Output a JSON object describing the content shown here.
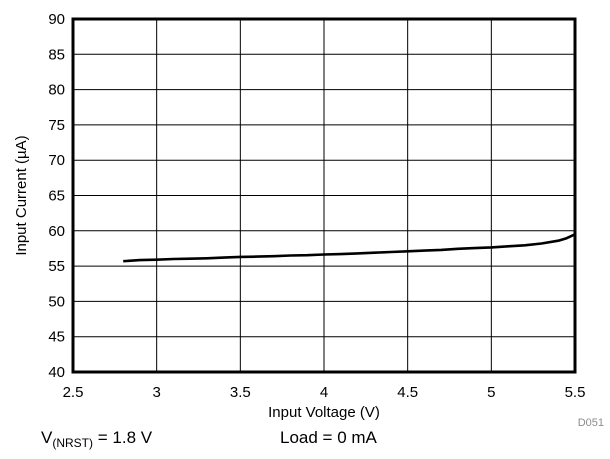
{
  "chart_data": {
    "type": "line",
    "xlabel": "Input Voltage (V)",
    "ylabel": "Input Current (µA)",
    "xlim": [
      2.5,
      5.5
    ],
    "ylim": [
      40,
      90
    ],
    "xticks": [
      "2.5",
      "3",
      "3.5",
      "4",
      "4.5",
      "5",
      "5.5"
    ],
    "yticks": [
      "40",
      "45",
      "50",
      "55",
      "60",
      "65",
      "70",
      "75",
      "80",
      "85",
      "90"
    ],
    "grid": true,
    "legend": "none",
    "series": [
      {
        "x": [
          2.8,
          2.9,
          3.0,
          3.1,
          3.2,
          3.3,
          3.4,
          3.5,
          3.6,
          3.7,
          3.8,
          3.9,
          4.0,
          4.1,
          4.2,
          4.3,
          4.4,
          4.5,
          4.6,
          4.7,
          4.8,
          4.9,
          5.0,
          5.1,
          5.2,
          5.3,
          5.4,
          5.45,
          5.5
        ],
        "y": [
          55.7,
          55.85,
          55.9,
          56.0,
          56.05,
          56.1,
          56.2,
          56.3,
          56.35,
          56.4,
          56.5,
          56.55,
          56.65,
          56.7,
          56.8,
          56.9,
          57.0,
          57.1,
          57.2,
          57.3,
          57.45,
          57.55,
          57.65,
          57.8,
          57.95,
          58.2,
          58.6,
          58.95,
          59.5
        ],
        "color": "#000000"
      }
    ],
    "figure_id": "D051"
  },
  "conditions": {
    "vnrst_symbol": "V",
    "vnrst_sub": "(NRST)",
    "vnrst_value": " = 1.8 V",
    "load": "Load = 0 mA"
  }
}
